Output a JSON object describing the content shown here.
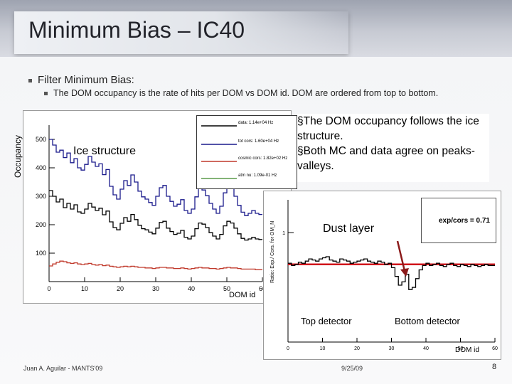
{
  "slide": {
    "title": "Minimum Bias – IC40",
    "bullet1": "Filter Minimum Bias:",
    "bullet2": "The DOM occupancy is the rate of hits per DOM vs DOM id. DOM are ordered from top to bottom.",
    "footer_left": "Juan A. Aguilar - MANTS'09",
    "footer_date": "9/25/09",
    "page_number": "8"
  },
  "occupancy_plot": {
    "ylabel": "Occupancy",
    "xlabel": "DOM id",
    "annotation": "Ice structure",
    "legend": [
      "data: 1.14e+04 Hz",
      "tot cors: 1.60e+04 Hz",
      "cosmic cors: 1.82e+02 Hz",
      "atm nu: 1.09e-01 Hz"
    ]
  },
  "callout": {
    "line1": "§The DOM occupancy follows the ice structure.",
    "line2": "§Both MC and data agree on peaks-valleys."
  },
  "ratio_plot": {
    "ylabel": "Ratio: Exp./ Cors. for OM_N",
    "xlabel": "DOM id",
    "stat_label": "exp/cors = 0.71",
    "annotation_dust": "Dust layer",
    "annotation_top": "Top detector",
    "annotation_bottom": "Bottom detector"
  },
  "chart_data": [
    {
      "type": "line",
      "ylabel": "Occupancy",
      "xlabel": "DOM id",
      "xlim": [
        0,
        60
      ],
      "ylim": [
        0,
        550
      ],
      "x_ticks": [
        0,
        10,
        20,
        30,
        40,
        50,
        60
      ],
      "y_ticks": [
        100,
        200,
        300,
        400,
        500
      ],
      "grid": false,
      "legend_position": "top-right",
      "series": [
        {
          "name": "data: 1.14e+04 Hz",
          "color": "#000000",
          "x": [
            1,
            2,
            3,
            4,
            5,
            6,
            7,
            8,
            9,
            10,
            11,
            12,
            13,
            14,
            15,
            16,
            17,
            18,
            19,
            20,
            21,
            22,
            23,
            24,
            25,
            26,
            27,
            28,
            29,
            30,
            31,
            32,
            33,
            34,
            35,
            36,
            37,
            38,
            39,
            40,
            41,
            42,
            43,
            44,
            45,
            46,
            47,
            48,
            49,
            50,
            51,
            52,
            53,
            54,
            55,
            56,
            57,
            58,
            59,
            60
          ],
          "y": [
            320,
            300,
            280,
            290,
            260,
            275,
            255,
            270,
            245,
            240,
            255,
            275,
            262,
            250,
            258,
            235,
            248,
            210,
            190,
            182,
            205,
            225,
            212,
            236,
            218,
            198,
            186,
            182,
            174,
            168,
            188,
            208,
            212,
            188,
            176,
            166,
            170,
            180,
            156,
            150,
            160,
            186,
            206,
            202,
            190,
            172,
            160,
            150,
            166,
            196,
            212,
            206,
            188,
            168,
            152,
            146,
            150,
            156,
            150,
            148
          ]
        },
        {
          "name": "tot cors: 1.60e+04 Hz",
          "color": "#1a1a8c",
          "x": [
            1,
            2,
            3,
            4,
            5,
            6,
            7,
            8,
            9,
            10,
            11,
            12,
            13,
            14,
            15,
            16,
            17,
            18,
            19,
            20,
            21,
            22,
            23,
            24,
            25,
            26,
            27,
            28,
            29,
            30,
            31,
            32,
            33,
            34,
            35,
            36,
            37,
            38,
            39,
            40,
            41,
            42,
            43,
            44,
            45,
            46,
            47,
            48,
            49,
            50,
            51,
            52,
            53,
            54,
            55,
            56,
            57,
            58,
            59,
            60
          ],
          "y": [
            500,
            480,
            455,
            462,
            436,
            452,
            418,
            432,
            400,
            392,
            412,
            440,
            420,
            405,
            414,
            376,
            394,
            335,
            305,
            290,
            325,
            355,
            338,
            375,
            350,
            318,
            298,
            290,
            278,
            268,
            300,
            330,
            338,
            300,
            282,
            265,
            272,
            288,
            250,
            240,
            255,
            298,
            330,
            322,
            302,
            275,
            255,
            240,
            265,
            312,
            338,
            328,
            300,
            268,
            244,
            232,
            240,
            250,
            240,
            236
          ]
        },
        {
          "name": "cosmic cors: 1.82e+02 Hz",
          "color": "#c0392b",
          "x": [
            1,
            2,
            3,
            4,
            5,
            6,
            7,
            8,
            9,
            10,
            11,
            12,
            13,
            14,
            15,
            16,
            17,
            18,
            19,
            20,
            21,
            22,
            23,
            24,
            25,
            26,
            27,
            28,
            29,
            30,
            31,
            32,
            33,
            34,
            35,
            36,
            37,
            38,
            39,
            40,
            41,
            42,
            43,
            44,
            45,
            46,
            47,
            48,
            49,
            50,
            51,
            52,
            53,
            54,
            55,
            56,
            57,
            58,
            59,
            60
          ],
          "y": [
            55,
            62,
            68,
            72,
            70,
            66,
            64,
            66,
            62,
            60,
            62,
            64,
            60,
            58,
            60,
            56,
            58,
            54,
            52,
            50,
            52,
            54,
            52,
            54,
            52,
            50,
            50,
            48,
            48,
            46,
            48,
            50,
            50,
            48,
            48,
            46,
            46,
            48,
            46,
            44,
            46,
            48,
            50,
            48,
            48,
            46,
            46,
            44,
            46,
            48,
            50,
            48,
            48,
            46,
            44,
            44,
            44,
            44,
            42,
            42
          ]
        }
      ]
    },
    {
      "type": "line",
      "ylabel": "Ratio: Exp./ Cors. for OM_N",
      "xlabel": "DOM id",
      "xlim": [
        0,
        60
      ],
      "ylim": [
        0,
        1.3
      ],
      "x_ticks": [
        0,
        10,
        20,
        30,
        40,
        50,
        60
      ],
      "y_ticks": [
        1
      ],
      "reference_line": 0.71,
      "series": [
        {
          "name": "exp/cors = 0.71",
          "color": "#000000",
          "x": [
            1,
            2,
            3,
            4,
            5,
            6,
            7,
            8,
            9,
            10,
            11,
            12,
            13,
            14,
            15,
            16,
            17,
            18,
            19,
            20,
            21,
            22,
            23,
            24,
            25,
            26,
            27,
            28,
            29,
            30,
            31,
            32,
            33,
            34,
            35,
            36,
            37,
            38,
            39,
            40,
            41,
            42,
            43,
            44,
            45,
            46,
            47,
            48,
            49,
            50,
            51,
            52,
            53,
            54,
            55,
            56,
            57,
            58,
            59,
            60
          ],
          "y": [
            0.72,
            0.7,
            0.71,
            0.73,
            0.72,
            0.74,
            0.76,
            0.75,
            0.74,
            0.76,
            0.77,
            0.78,
            0.75,
            0.74,
            0.73,
            0.76,
            0.75,
            0.74,
            0.72,
            0.73,
            0.74,
            0.75,
            0.76,
            0.74,
            0.73,
            0.72,
            0.74,
            0.73,
            0.71,
            0.72,
            0.68,
            0.6,
            0.52,
            0.55,
            0.62,
            0.48,
            0.5,
            0.58,
            0.66,
            0.7,
            0.72,
            0.7,
            0.71,
            0.72,
            0.7,
            0.69,
            0.71,
            0.72,
            0.7,
            0.69,
            0.71,
            0.7,
            0.69,
            0.71,
            0.7,
            0.69,
            0.7,
            0.71,
            0.7,
            0.7
          ]
        }
      ]
    }
  ]
}
